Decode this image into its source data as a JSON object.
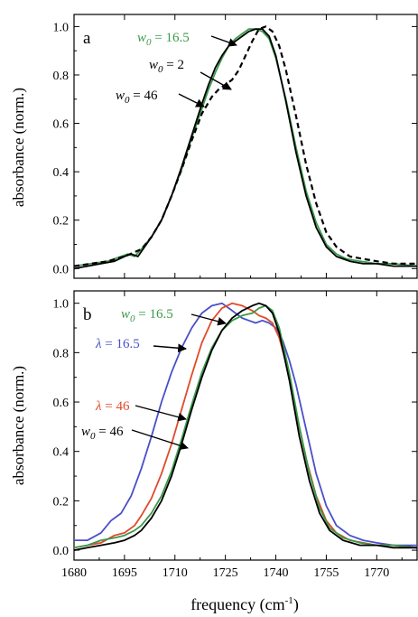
{
  "chart_data": [
    {
      "type": "line",
      "panel_label": "a",
      "xlabel": "",
      "ylabel": "absorbance (norm.)",
      "xlim": [
        1680,
        1782
      ],
      "ylim": [
        -0.04,
        1.05
      ],
      "xticks": [
        1680,
        1695,
        1710,
        1725,
        1740,
        1755,
        1770
      ],
      "yticks": [
        "0.0",
        "0.2",
        "0.4",
        "0.6",
        "0.8",
        "1.0"
      ],
      "series": [
        {
          "name": "w0 = 16.5",
          "color": "#3a9a4a",
          "dash": "solid",
          "x": [
            1680,
            1685,
            1690,
            1694,
            1696,
            1698,
            1700,
            1703,
            1706,
            1709,
            1712,
            1715,
            1718,
            1720,
            1722,
            1724,
            1726,
            1728,
            1730,
            1732,
            1734,
            1736,
            1738,
            1740,
            1743,
            1746,
            1749,
            1752,
            1755,
            1758,
            1761,
            1765,
            1770,
            1775,
            1782
          ],
          "y": [
            0.01,
            0.02,
            0.03,
            0.05,
            0.06,
            0.05,
            0.08,
            0.13,
            0.2,
            0.3,
            0.41,
            0.54,
            0.66,
            0.74,
            0.81,
            0.87,
            0.92,
            0.95,
            0.97,
            0.99,
            0.99,
            0.98,
            0.95,
            0.87,
            0.7,
            0.5,
            0.32,
            0.19,
            0.1,
            0.06,
            0.04,
            0.03,
            0.02,
            0.02,
            0.01
          ]
        },
        {
          "name": "w0 = 2",
          "color": "#000000",
          "dash": "dashed",
          "x": [
            1680,
            1685,
            1690,
            1695,
            1700,
            1703,
            1706,
            1709,
            1712,
            1715,
            1718,
            1721,
            1723,
            1725,
            1727,
            1729,
            1731,
            1733,
            1735,
            1737,
            1739,
            1741,
            1743,
            1746,
            1749,
            1752,
            1755,
            1758,
            1762,
            1766,
            1770,
            1775,
            1782
          ],
          "y": [
            0.01,
            0.02,
            0.03,
            0.05,
            0.08,
            0.13,
            0.2,
            0.3,
            0.41,
            0.53,
            0.64,
            0.71,
            0.74,
            0.76,
            0.78,
            0.82,
            0.88,
            0.94,
            0.99,
            1.0,
            0.98,
            0.92,
            0.82,
            0.63,
            0.43,
            0.27,
            0.15,
            0.09,
            0.05,
            0.04,
            0.03,
            0.02,
            0.02
          ]
        },
        {
          "name": "w0 = 46",
          "color": "#000000",
          "dash": "solid",
          "x": [
            1680,
            1684,
            1688,
            1692,
            1695,
            1697,
            1699,
            1701,
            1703,
            1706,
            1709,
            1712,
            1715,
            1718,
            1720,
            1722,
            1724,
            1726,
            1728,
            1730,
            1732,
            1734,
            1736,
            1738,
            1740,
            1743,
            1746,
            1749,
            1752,
            1755,
            1758,
            1762,
            1766,
            1770,
            1775,
            1782
          ],
          "y": [
            0.0,
            0.01,
            0.02,
            0.03,
            0.05,
            0.06,
            0.05,
            0.09,
            0.13,
            0.2,
            0.3,
            0.42,
            0.55,
            0.68,
            0.76,
            0.83,
            0.88,
            0.92,
            0.94,
            0.96,
            0.98,
            0.99,
            0.99,
            0.96,
            0.88,
            0.69,
            0.48,
            0.3,
            0.17,
            0.09,
            0.05,
            0.03,
            0.02,
            0.02,
            0.01,
            0.01
          ]
        }
      ],
      "annotations": [
        {
          "var": "w",
          "sub": "0",
          "text": " = 16.5",
          "color": "#3a9a4a"
        },
        {
          "var": "w",
          "sub": "0",
          "text": " = 2",
          "color": "#000000"
        },
        {
          "var": "w",
          "sub": "0",
          "text": " = 46",
          "color": "#000000"
        }
      ]
    },
    {
      "type": "line",
      "panel_label": "b",
      "xlabel": "frequency (cm-1)",
      "ylabel": "absorbance (norm.)",
      "xlim": [
        1680,
        1782
      ],
      "ylim": [
        -0.04,
        1.05
      ],
      "xticks": [
        1680,
        1695,
        1710,
        1725,
        1740,
        1755,
        1770
      ],
      "yticks": [
        "0.0",
        "0.2",
        "0.4",
        "0.6",
        "0.8",
        "1.0"
      ],
      "series": [
        {
          "name": "λ = 16.5",
          "color": "#4a4fc8",
          "dash": "solid",
          "x": [
            1680,
            1684,
            1688,
            1691,
            1694,
            1697,
            1700,
            1703,
            1706,
            1709,
            1712,
            1715,
            1718,
            1721,
            1724,
            1726,
            1728,
            1730,
            1732,
            1734,
            1736,
            1738,
            1740,
            1742,
            1744,
            1746,
            1748,
            1750,
            1752,
            1755,
            1758,
            1762,
            1766,
            1770,
            1775,
            1782
          ],
          "y": [
            0.04,
            0.04,
            0.07,
            0.12,
            0.15,
            0.22,
            0.33,
            0.46,
            0.6,
            0.72,
            0.82,
            0.9,
            0.96,
            0.99,
            1.0,
            0.98,
            0.96,
            0.94,
            0.93,
            0.92,
            0.93,
            0.92,
            0.9,
            0.85,
            0.77,
            0.67,
            0.55,
            0.43,
            0.31,
            0.18,
            0.1,
            0.06,
            0.04,
            0.03,
            0.02,
            0.02
          ]
        },
        {
          "name": "λ = 46",
          "color": "#e04a2a",
          "dash": "solid",
          "x": [
            1680,
            1684,
            1688,
            1692,
            1695,
            1698,
            1700,
            1703,
            1706,
            1709,
            1712,
            1715,
            1718,
            1721,
            1724,
            1727,
            1730,
            1733,
            1735,
            1737,
            1739,
            1741,
            1743,
            1746,
            1749,
            1752,
            1755,
            1758,
            1762,
            1766,
            1770,
            1775,
            1782
          ],
          "y": [
            0.01,
            0.02,
            0.03,
            0.06,
            0.07,
            0.1,
            0.14,
            0.21,
            0.31,
            0.43,
            0.57,
            0.71,
            0.84,
            0.93,
            0.98,
            1.0,
            0.99,
            0.97,
            0.95,
            0.94,
            0.92,
            0.86,
            0.76,
            0.56,
            0.37,
            0.22,
            0.12,
            0.07,
            0.04,
            0.03,
            0.02,
            0.02,
            0.01
          ]
        },
        {
          "name": "w0 = 16.5",
          "color": "#3a9a4a",
          "dash": "solid",
          "x": [
            1680,
            1684,
            1688,
            1692,
            1695,
            1698,
            1700,
            1703,
            1706,
            1709,
            1712,
            1715,
            1718,
            1721,
            1724,
            1727,
            1730,
            1733,
            1735,
            1737,
            1739,
            1741,
            1744,
            1747,
            1750,
            1753,
            1756,
            1760,
            1765,
            1770,
            1775,
            1782
          ],
          "y": [
            0.01,
            0.02,
            0.04,
            0.05,
            0.06,
            0.08,
            0.1,
            0.15,
            0.22,
            0.32,
            0.45,
            0.59,
            0.72,
            0.82,
            0.89,
            0.93,
            0.95,
            0.96,
            0.98,
            0.99,
            0.97,
            0.9,
            0.72,
            0.5,
            0.31,
            0.17,
            0.09,
            0.05,
            0.03,
            0.02,
            0.02,
            0.01
          ]
        },
        {
          "name": "w0 = 46",
          "color": "#000000",
          "dash": "solid",
          "x": [
            1680,
            1684,
            1688,
            1692,
            1695,
            1698,
            1700,
            1703,
            1706,
            1709,
            1712,
            1715,
            1718,
            1721,
            1724,
            1727,
            1730,
            1733,
            1735,
            1737,
            1739,
            1741,
            1744,
            1747,
            1750,
            1753,
            1756,
            1760,
            1765,
            1770,
            1775,
            1782
          ],
          "y": [
            0.0,
            0.01,
            0.02,
            0.03,
            0.04,
            0.06,
            0.08,
            0.13,
            0.2,
            0.3,
            0.43,
            0.57,
            0.7,
            0.81,
            0.89,
            0.94,
            0.97,
            0.99,
            1.0,
            0.99,
            0.96,
            0.88,
            0.69,
            0.46,
            0.28,
            0.15,
            0.08,
            0.04,
            0.02,
            0.02,
            0.01,
            0.01
          ]
        }
      ],
      "annotations": [
        {
          "var": "w",
          "sub": "0",
          "text": " = 16.5",
          "color": "#3a9a4a"
        },
        {
          "var": "λ",
          "sub": "",
          "text": " = 16.5",
          "color": "#4a4fc8"
        },
        {
          "var": "λ",
          "sub": "",
          "text": " = 46",
          "color": "#e04a2a"
        },
        {
          "var": "w",
          "sub": "0",
          "text": " = 46",
          "color": "#000000"
        }
      ]
    }
  ],
  "xlabel_parts": {
    "main": "frequency (cm",
    "sup": "-1",
    "end": ")"
  }
}
